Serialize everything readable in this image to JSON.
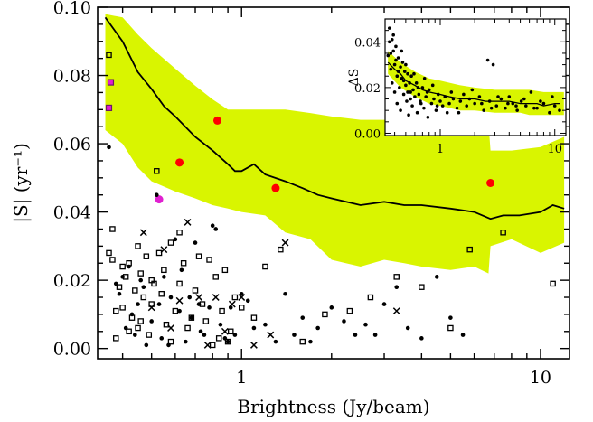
{
  "colors": {
    "band": "#d9f500",
    "line": "#000000",
    "red_points": "#ff0000",
    "magenta_points": "#e020d0",
    "black_points": "#000000"
  },
  "chart_data": [
    {
      "type": "scatter",
      "xscale": "log",
      "xlabel": "Brightness (Jy/beam)",
      "ylabel": "|S| (yr⁻¹)",
      "xlim": [
        0.33,
        12.5
      ],
      "ylim": [
        -0.003,
        0.1
      ],
      "x_ticks": [
        {
          "value": 1,
          "label": "1"
        },
        {
          "value": 10,
          "label": "10"
        }
      ],
      "y_ticks": [
        {
          "value": 0.0,
          "label": "0.00"
        },
        {
          "value": 0.02,
          "label": "0.02"
        },
        {
          "value": 0.04,
          "label": "0.04"
        },
        {
          "value": 0.06,
          "label": "0.06"
        },
        {
          "value": 0.08,
          "label": "0.08"
        },
        {
          "value": 0.1,
          "label": "0.10"
        }
      ],
      "grid": false,
      "legend": "none",
      "band": {
        "x": [
          0.35,
          0.4,
          0.45,
          0.5,
          0.6,
          0.7,
          0.8,
          0.9,
          1.0,
          1.2,
          1.4,
          1.7,
          2.0,
          2.5,
          3.0,
          3.5,
          4.0,
          5.0,
          6.0,
          6.7,
          6.8,
          8.0,
          10.0,
          12.0
        ],
        "upper": [
          0.098,
          0.097,
          0.092,
          0.088,
          0.082,
          0.077,
          0.073,
          0.07,
          0.07,
          0.07,
          0.07,
          0.069,
          0.068,
          0.067,
          0.067,
          0.066,
          0.066,
          0.066,
          0.066,
          0.066,
          0.058,
          0.058,
          0.059,
          0.062
        ],
        "lower": [
          0.064,
          0.06,
          0.053,
          0.049,
          0.046,
          0.044,
          0.042,
          0.041,
          0.04,
          0.039,
          0.034,
          0.032,
          0.026,
          0.024,
          0.026,
          0.025,
          0.024,
          0.023,
          0.024,
          0.022,
          0.03,
          0.032,
          0.028,
          0.031
        ]
      },
      "series": [
        {
          "marker": "line",
          "x": [
            0.35,
            0.4,
            0.45,
            0.5,
            0.55,
            0.6,
            0.7,
            0.8,
            0.9,
            0.95,
            1.0,
            1.1,
            1.2,
            1.4,
            1.6,
            1.8,
            2.0,
            2.5,
            3.0,
            3.5,
            4.0,
            5.0,
            6.0,
            6.8,
            7.5,
            8.5,
            10.0,
            11.0,
            12.0
          ],
          "y": [
            0.097,
            0.09,
            0.081,
            0.076,
            0.071,
            0.068,
            0.062,
            0.058,
            0.054,
            0.052,
            0.052,
            0.054,
            0.051,
            0.049,
            0.047,
            0.045,
            0.044,
            0.042,
            0.043,
            0.042,
            0.042,
            0.041,
            0.04,
            0.038,
            0.039,
            0.039,
            0.04,
            0.042,
            0.041
          ]
        },
        {
          "marker": "filled-circle-red",
          "x": [
            0.62,
            0.83,
            1.3,
            6.8
          ],
          "y": [
            0.0545,
            0.0668,
            0.047,
            0.0485
          ]
        },
        {
          "marker": "filled-circle-magenta",
          "x": [
            0.53
          ],
          "y": [
            0.0437
          ]
        },
        {
          "marker": "open-square-magenta",
          "x": [
            0.365,
            0.36
          ],
          "y": [
            0.078,
            0.0705
          ]
        },
        {
          "marker": "small-dot",
          "x": [
            0.36,
            0.38,
            0.4,
            0.41,
            0.42,
            0.44,
            0.45,
            0.47,
            0.48,
            0.5,
            0.52,
            0.54,
            0.55,
            0.58,
            0.6,
            0.62,
            0.65,
            0.68,
            0.7,
            0.72,
            0.75,
            0.78,
            0.8,
            0.85,
            0.9,
            0.95,
            1.0,
            1.05,
            1.1,
            1.2,
            1.3,
            1.4,
            1.5,
            1.6,
            1.7,
            1.8,
            2.0,
            2.2,
            2.4,
            2.6,
            2.8,
            3.0,
            3.3,
            3.6,
            4.0,
            4.5,
            5.0,
            5.5,
            0.39,
            0.43,
            0.46,
            0.53,
            0.57,
            0.63,
            0.67,
            0.73,
            0.82,
            0.88,
            0.92
          ],
          "y": [
            0.059,
            0.019,
            0.021,
            0.006,
            0.024,
            0.004,
            0.013,
            0.018,
            0.001,
            0.008,
            0.045,
            0.003,
            0.021,
            0.015,
            0.032,
            0.011,
            0.002,
            0.009,
            0.031,
            0.013,
            0.004,
            0.012,
            0.036,
            0.007,
            0.002,
            0.004,
            0.016,
            0.014,
            0.006,
            0.007,
            0.002,
            0.016,
            0.004,
            0.009,
            0.002,
            0.006,
            0.012,
            0.008,
            0.004,
            0.007,
            0.004,
            0.013,
            0.018,
            0.006,
            0.003,
            0.021,
            0.009,
            0.004,
            0.016,
            0.01,
            0.02,
            0.013,
            0.001,
            0.023,
            0.015,
            0.005,
            0.035,
            0.003,
            0.012
          ]
        },
        {
          "marker": "open-square",
          "x": [
            0.36,
            0.37,
            0.37,
            0.38,
            0.39,
            0.4,
            0.4,
            0.41,
            0.42,
            0.43,
            0.44,
            0.45,
            0.45,
            0.46,
            0.47,
            0.48,
            0.49,
            0.5,
            0.51,
            0.52,
            0.53,
            0.55,
            0.56,
            0.58,
            0.6,
            0.62,
            0.64,
            0.66,
            0.7,
            0.74,
            0.78,
            0.82,
            0.86,
            0.9,
            0.95,
            1.0,
            1.1,
            1.2,
            1.35,
            1.6,
            1.9,
            2.3,
            2.7,
            3.3,
            4.0,
            5.0,
            5.8,
            7.5,
            11.0,
            0.36,
            0.38,
            0.42,
            0.46,
            0.5,
            0.54,
            0.58,
            0.62,
            0.68,
            0.72,
            0.76,
            0.8,
            0.84,
            0.88,
            0.92
          ],
          "y": [
            0.086,
            0.035,
            0.026,
            0.003,
            0.018,
            0.024,
            0.012,
            0.021,
            0.025,
            0.009,
            0.017,
            0.03,
            0.006,
            0.022,
            0.015,
            0.027,
            0.004,
            0.013,
            0.019,
            0.052,
            0.028,
            0.023,
            0.007,
            0.031,
            0.011,
            0.019,
            0.025,
            0.006,
            0.017,
            0.013,
            0.026,
            0.021,
            0.011,
            0.002,
            0.015,
            0.012,
            0.009,
            0.024,
            0.029,
            0.002,
            0.01,
            0.011,
            0.015,
            0.021,
            0.018,
            0.006,
            0.029,
            0.034,
            0.019,
            0.028,
            0.011,
            0.005,
            0.008,
            0.02,
            0.016,
            0.002,
            0.034,
            0.009,
            0.027,
            0.008,
            0.001,
            0.003,
            0.023,
            0.005
          ],
          "color": "#000000"
        },
        {
          "marker": "cross",
          "x": [
            0.47,
            0.5,
            0.55,
            0.58,
            0.62,
            0.66,
            0.72,
            0.77,
            0.82,
            0.88,
            0.93,
            1.0,
            1.1,
            1.25,
            1.4,
            3.3
          ],
          "y": [
            0.034,
            0.012,
            0.029,
            0.006,
            0.014,
            0.037,
            0.015,
            0.001,
            0.015,
            0.005,
            0.013,
            0.015,
            0.001,
            0.004,
            0.031,
            0.011
          ]
        }
      ]
    },
    {
      "type": "scatter",
      "xscale": "log",
      "xlabel": "",
      "ylabel": "ΔS",
      "xlim": [
        0.33,
        12.5
      ],
      "ylim": [
        -0.001,
        0.05
      ],
      "x_ticks": [
        {
          "value": 1,
          "label": "1"
        },
        {
          "value": 10,
          "label": "10"
        }
      ],
      "y_ticks": [
        {
          "value": 0.0,
          "label": "0.00"
        },
        {
          "value": 0.02,
          "label": "0.02"
        },
        {
          "value": 0.04,
          "label": "0.04"
        }
      ],
      "grid": false,
      "legend": "none",
      "band": {
        "x": [
          0.35,
          0.45,
          0.6,
          0.8,
          1.0,
          1.5,
          2.0,
          3.0,
          4.0,
          5.0,
          6.0,
          8.0,
          10.0,
          12.0
        ],
        "upper": [
          0.036,
          0.031,
          0.027,
          0.024,
          0.023,
          0.021,
          0.02,
          0.019,
          0.019,
          0.019,
          0.019,
          0.018,
          0.018,
          0.018
        ],
        "lower": [
          0.026,
          0.02,
          0.016,
          0.013,
          0.012,
          0.01,
          0.01,
          0.009,
          0.009,
          0.009,
          0.008,
          0.008,
          0.008,
          0.008
        ]
      },
      "series": [
        {
          "marker": "line",
          "x": [
            0.35,
            0.4,
            0.45,
            0.5,
            0.6,
            0.7,
            0.8,
            1.0,
            1.2,
            1.5,
            2.0,
            2.5,
            3.0,
            4.0,
            5.0,
            6.0,
            7.0,
            8.0,
            10.0,
            11.0
          ],
          "y": [
            0.031,
            0.028,
            0.026,
            0.023,
            0.021,
            0.019,
            0.018,
            0.017,
            0.016,
            0.015,
            0.015,
            0.014,
            0.014,
            0.014,
            0.013,
            0.013,
            0.013,
            0.012,
            0.013,
            0.013
          ]
        },
        {
          "marker": "small-dot",
          "x": [
            0.35,
            0.36,
            0.37,
            0.38,
            0.38,
            0.39,
            0.4,
            0.4,
            0.41,
            0.42,
            0.42,
            0.43,
            0.44,
            0.45,
            0.45,
            0.46,
            0.47,
            0.48,
            0.49,
            0.5,
            0.51,
            0.52,
            0.53,
            0.54,
            0.55,
            0.56,
            0.57,
            0.58,
            0.6,
            0.62,
            0.63,
            0.65,
            0.67,
            0.7,
            0.72,
            0.75,
            0.78,
            0.8,
            0.84,
            0.88,
            0.92,
            0.96,
            1.0,
            1.05,
            1.1,
            1.15,
            1.2,
            1.3,
            1.4,
            1.5,
            1.6,
            1.7,
            1.8,
            2.0,
            2.2,
            2.4,
            2.6,
            2.7,
            2.9,
            3.1,
            3.4,
            3.7,
            4.0,
            4.3,
            4.7,
            5.1,
            5.6,
            6.2,
            7.0,
            8.0,
            9.0,
            10.0,
            11.0,
            0.36,
            0.37,
            0.39,
            0.41,
            0.43,
            0.46,
            0.48,
            0.5,
            0.52,
            0.55,
            0.59,
            0.64,
            0.68,
            0.73,
            0.77,
            0.86,
            0.94,
            1.25,
            1.45,
            1.9,
            2.3,
            2.8,
            3.2,
            3.9,
            4.6,
            5.4,
            6.6,
            7.5,
            9.5
          ],
          "y": [
            0.034,
            0.046,
            0.028,
            0.041,
            0.022,
            0.036,
            0.03,
            0.018,
            0.038,
            0.025,
            0.013,
            0.033,
            0.02,
            0.029,
            0.01,
            0.024,
            0.031,
            0.017,
            0.027,
            0.021,
            0.014,
            0.026,
            0.008,
            0.022,
            0.018,
            0.025,
            0.012,
            0.019,
            0.016,
            0.022,
            0.009,
            0.017,
            0.014,
            0.02,
            0.011,
            0.016,
            0.007,
            0.019,
            0.013,
            0.015,
            0.01,
            0.017,
            0.014,
            0.012,
            0.016,
            0.009,
            0.013,
            0.015,
            0.011,
            0.014,
            0.017,
            0.012,
            0.015,
            0.013,
            0.016,
            0.01,
            0.032,
            0.014,
            0.03,
            0.012,
            0.015,
            0.011,
            0.016,
            0.013,
            0.01,
            0.014,
            0.012,
            0.018,
            0.011,
            0.013,
            0.009,
            0.012,
            0.01,
            0.04,
            0.035,
            0.043,
            0.032,
            0.027,
            0.036,
            0.023,
            0.03,
            0.018,
            0.015,
            0.026,
            0.02,
            0.013,
            0.024,
            0.018,
            0.021,
            0.012,
            0.018,
            0.009,
            0.019,
            0.013,
            0.011,
            0.016,
            0.013,
            0.012,
            0.015,
            0.011,
            0.014,
            0.016
          ]
        }
      ]
    }
  ]
}
